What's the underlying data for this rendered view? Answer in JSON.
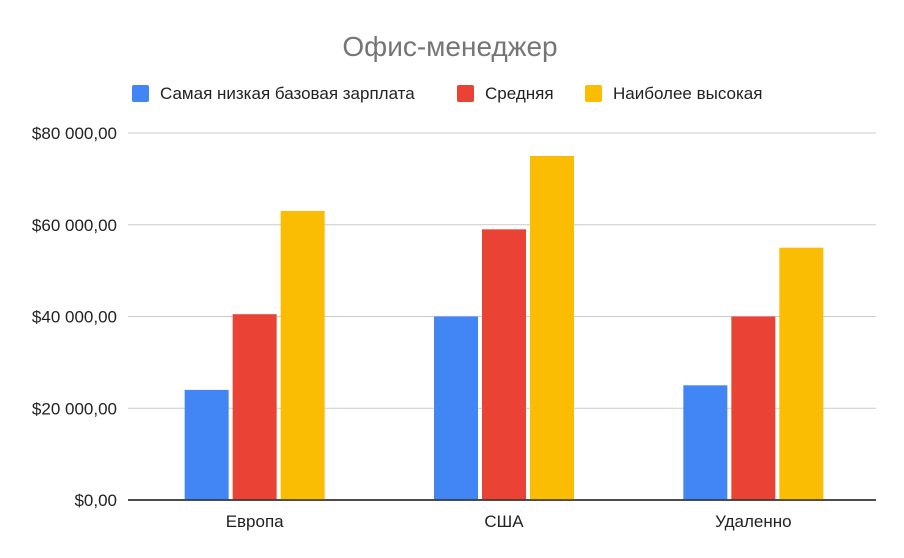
{
  "chart_data": {
    "type": "bar",
    "title": "Офис-менеджер",
    "categories": [
      "Европа",
      "США",
      "Удаленно"
    ],
    "series": [
      {
        "name": "Самая низкая базовая зарплата",
        "color": "#4285F4",
        "values": [
          24000,
          40000,
          25000
        ]
      },
      {
        "name": "Средняя",
        "color": "#EA4335",
        "values": [
          40500,
          59000,
          40000
        ]
      },
      {
        "name": "Наиболее высокая",
        "color": "#FBBC04",
        "values": [
          63000,
          75000,
          55000
        ]
      }
    ],
    "y_ticks": [
      0,
      20000,
      40000,
      60000,
      80000
    ],
    "y_tick_labels": [
      "$0,00",
      "$20 000,00",
      "$40 000,00",
      "$60 000,00",
      "$80 000,00"
    ],
    "ylim": [
      0,
      80000
    ],
    "xlabel": "",
    "ylabel": "",
    "grid": true,
    "legend_position": "top"
  }
}
